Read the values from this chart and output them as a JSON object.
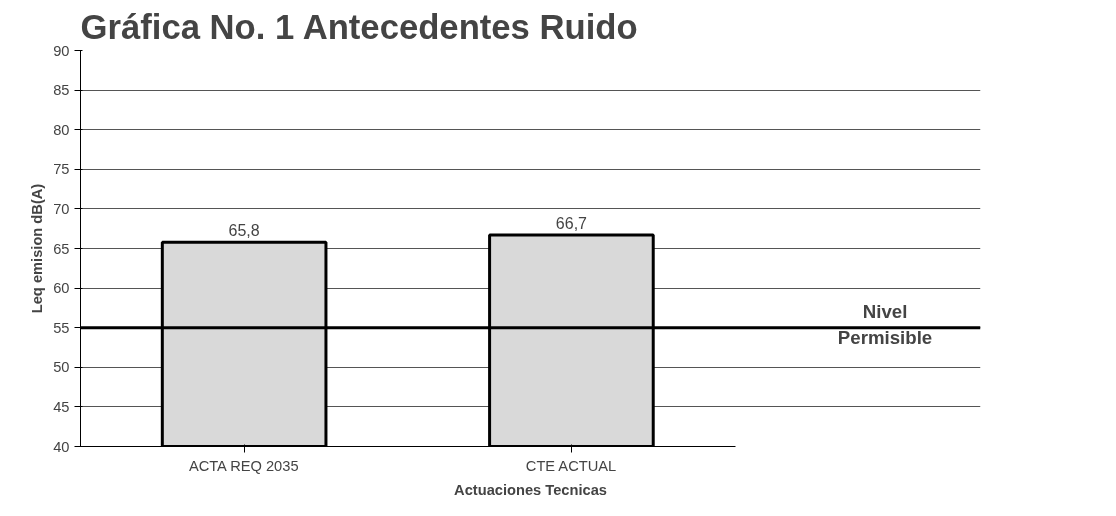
{
  "chart_data": {
    "type": "bar",
    "title": "Gráfica No. 1 Antecedentes Ruido",
    "xlabel": "Actuaciones Tecnicas",
    "ylabel": "Leq emision dB(A)",
    "categories": [
      "ACTA REQ 2035",
      "CTE ACTUAL"
    ],
    "values": [
      65.8,
      66.7
    ],
    "color": "#d9d9d9",
    "value_labels": [
      "65,8",
      "66,7"
    ],
    "ylim": [
      40,
      90
    ],
    "yticks": [
      40,
      45,
      50,
      55,
      60,
      65,
      70,
      75,
      80,
      85,
      90
    ],
    "grid": "y",
    "ref_lines": [
      {
        "axis": "y",
        "value": 55,
        "label": "Nivel Permisible",
        "color": "#000000"
      }
    ]
  }
}
